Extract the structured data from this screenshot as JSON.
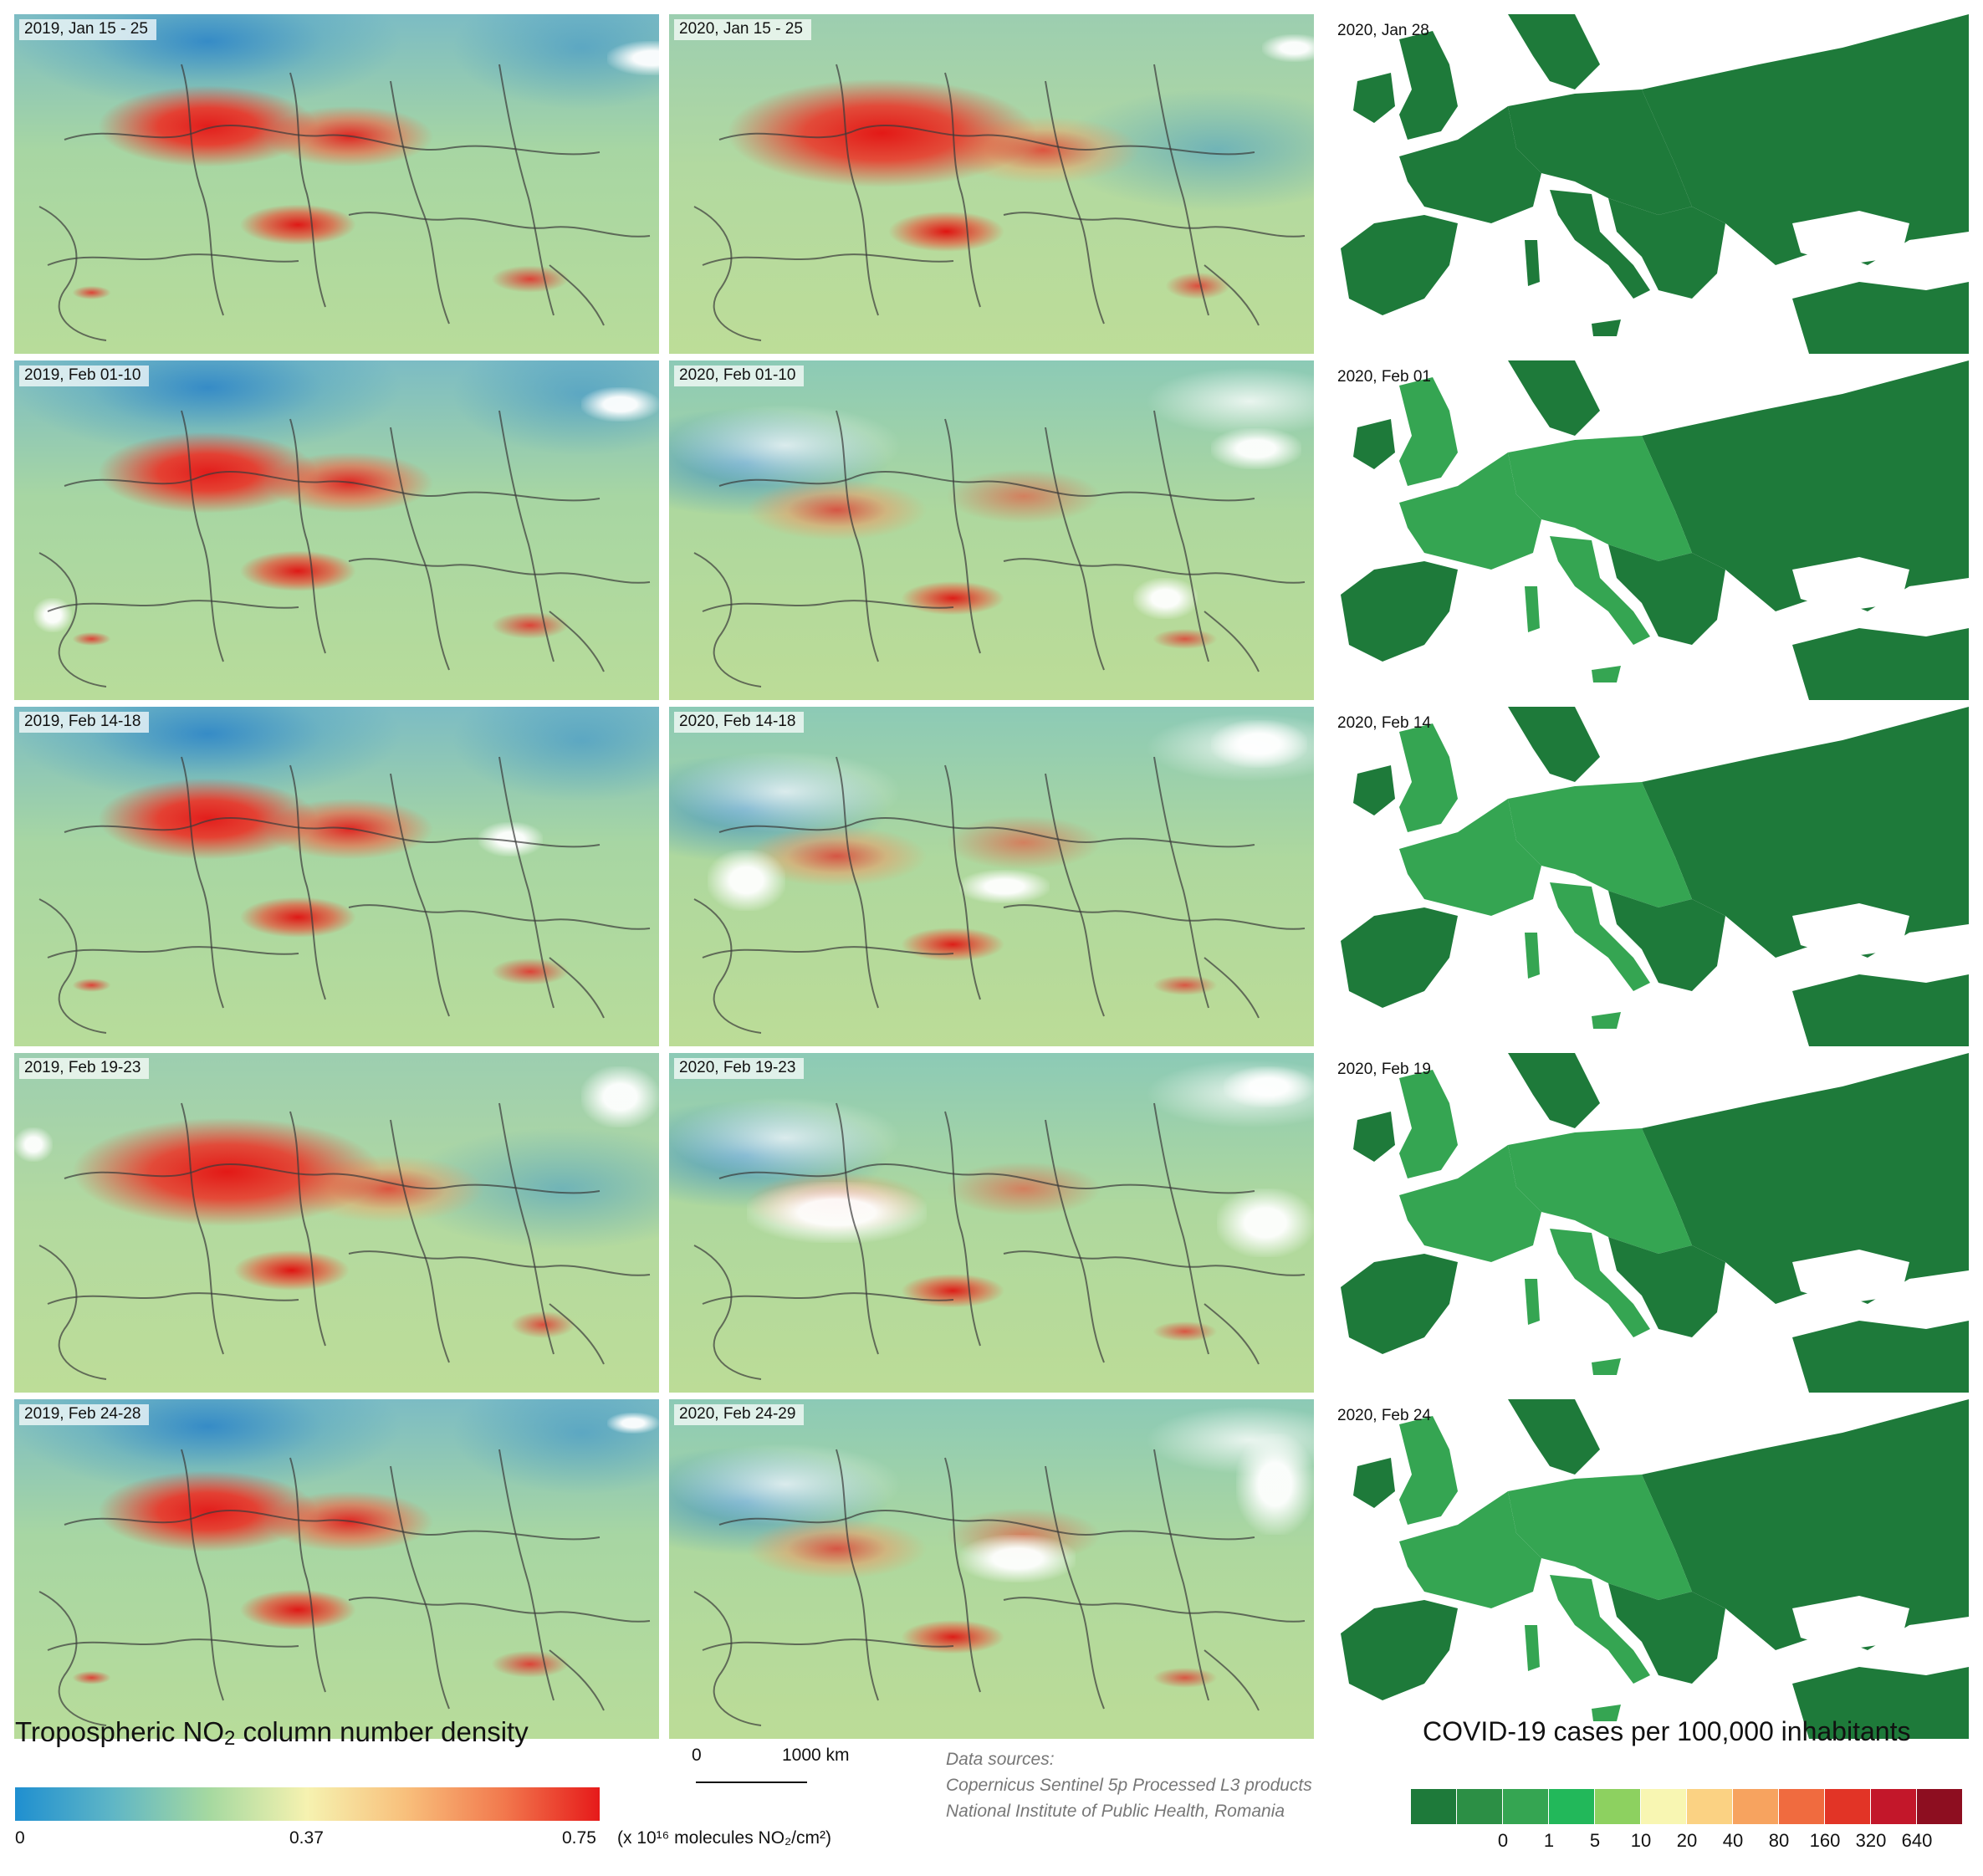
{
  "no2_panels": [
    {
      "label": "2019, Jan 15 - 25"
    },
    {
      "label": "2020, Jan 15 - 25"
    },
    {
      "label": "2019, Feb 01-10"
    },
    {
      "label": "2020, Feb 01-10"
    },
    {
      "label": "2019, Feb 14-18"
    },
    {
      "label": "2020, Feb 14-18"
    },
    {
      "label": "2019, Feb 19-23"
    },
    {
      "label": "2020, Feb 19-23"
    },
    {
      "label": "2019, Feb 24-28"
    },
    {
      "label": "2020, Feb 24-29"
    }
  ],
  "covid_panels": [
    {
      "label": "2020, Jan 28"
    },
    {
      "label": "2020, Feb 01"
    },
    {
      "label": "2020, Feb 14"
    },
    {
      "label": "2020, Feb 19"
    },
    {
      "label": "2020, Feb 24"
    }
  ],
  "no2_legend": {
    "title": "Tropospheric NO2 column number density",
    "title_main": "Tropospheric NO",
    "title_sub": "2",
    "title_rest": " column number density",
    "ticks": [
      "0",
      "0.37",
      "0.75"
    ],
    "unit": "(x 10¹⁶ molecules NO₂/cm²)",
    "gradient_colors": [
      "#1f8fd0",
      "#5fb6c6",
      "#a6d9a0",
      "#f6f2b0",
      "#f8c07c",
      "#f27a4e",
      "#e61a1a"
    ]
  },
  "scale_bar": {
    "start": "0",
    "end": "1000 km"
  },
  "data_sources": {
    "heading": "Data sources:",
    "lines": [
      "Copernicus Sentinel 5p Processed L3 products",
      "National Institute of Public Health, Romania"
    ]
  },
  "covid_legend": {
    "title": "COVID-19 cases per 100,000 inhabitants",
    "ticks": [
      "0",
      "1",
      "5",
      "10",
      "20",
      "40",
      "80",
      "160",
      "320",
      "640"
    ],
    "colors": [
      "#1e7a3a",
      "#2c8f45",
      "#35a552",
      "#22b85a",
      "#8dd160",
      "#f8f6b2",
      "#fbd283",
      "#f7a35f",
      "#f06b3f",
      "#e23426",
      "#c3172a",
      "#8d0e20"
    ]
  }
}
